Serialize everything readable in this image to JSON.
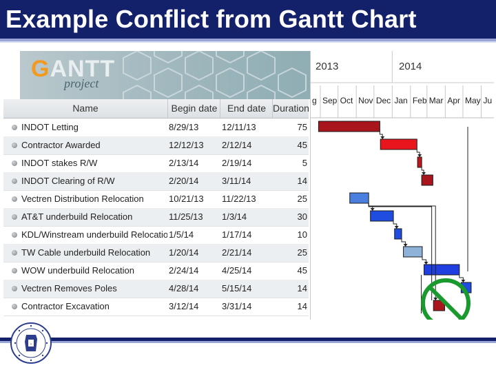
{
  "slide": {
    "title": "Example Conflict from Gantt Chart"
  },
  "logo": {
    "gantt_g": "G",
    "gantt_rest": "ANTT",
    "project": "project"
  },
  "columns": {
    "name": "Name",
    "begin": "Begin date",
    "end": "End date",
    "duration": "Duration"
  },
  "tasks": [
    {
      "name": "INDOT Letting",
      "begin": "8/29/13",
      "end": "12/11/13",
      "duration": "75"
    },
    {
      "name": "Contractor Awarded",
      "begin": "12/12/13",
      "end": "2/12/14",
      "duration": "45"
    },
    {
      "name": "INDOT stakes R/W",
      "begin": "2/13/14",
      "end": "2/19/14",
      "duration": "5"
    },
    {
      "name": "INDOT Clearing of R/W",
      "begin": "2/20/14",
      "end": "3/11/14",
      "duration": "14"
    },
    {
      "name": "Vectren Distribution Relocation",
      "begin": "10/21/13",
      "end": "11/22/13",
      "duration": "25"
    },
    {
      "name": "AT&T underbuild Relocation",
      "begin": "11/25/13",
      "end": "1/3/14",
      "duration": "30"
    },
    {
      "name": "KDL/Winstream underbuild Relocation",
      "begin": "1/5/14",
      "end": "1/17/14",
      "duration": "10"
    },
    {
      "name": "TW Cable underbuild Relocation",
      "begin": "1/20/14",
      "end": "2/21/14",
      "duration": "25"
    },
    {
      "name": "WOW underbuild Relocation",
      "begin": "2/24/14",
      "end": "4/25/14",
      "duration": "45"
    },
    {
      "name": "Vectren Removes Poles",
      "begin": "4/28/14",
      "end": "5/15/14",
      "duration": "14"
    },
    {
      "name": "Contractor Excavation",
      "begin": "3/12/14",
      "end": "3/31/14",
      "duration": "14"
    }
  ],
  "timeline": {
    "years": [
      "2013",
      "2014"
    ],
    "months": [
      "g",
      "Sep",
      "Oct",
      "Nov",
      "Dec",
      "Jan",
      "Feb",
      "Mar",
      "Apr",
      "May",
      "Ju"
    ]
  },
  "bars": [
    {
      "task": "INDOT Letting",
      "start": "2013-08-29",
      "end": "2013-12-11",
      "color": "#a8151d"
    },
    {
      "task": "Contractor Awarded",
      "start": "2013-12-12",
      "end": "2014-02-12",
      "color": "#e8161c"
    },
    {
      "task": "INDOT stakes R/W",
      "start": "2014-02-13",
      "end": "2014-02-19",
      "color": "#c0151b"
    },
    {
      "task": "INDOT Clearing of R/W",
      "start": "2014-02-20",
      "end": "2014-03-11",
      "color": "#a8151d"
    },
    {
      "task": "Vectren Distribution Relocation",
      "start": "2013-10-21",
      "end": "2013-11-22",
      "color": "#4a7fe0"
    },
    {
      "task": "AT&T underbuild Relocation",
      "start": "2013-11-25",
      "end": "2014-01-03",
      "color": "#1f4de0"
    },
    {
      "task": "KDL/Winstream underbuild Relocation",
      "start": "2014-01-05",
      "end": "2014-01-17",
      "color": "#1f4de0"
    },
    {
      "task": "TW Cable underbuild Relocation",
      "start": "2014-01-20",
      "end": "2014-02-21",
      "color": "#8fb3d8"
    },
    {
      "task": "WOW underbuild Relocation",
      "start": "2014-02-24",
      "end": "2014-04-25",
      "color": "#1f3fe0"
    },
    {
      "task": "Vectren Removes Poles",
      "start": "2014-04-28",
      "end": "2014-05-15",
      "color": "#1f4de0"
    },
    {
      "task": "Contractor Excavation",
      "start": "2014-03-12",
      "end": "2014-03-31",
      "color": "#a8151d"
    }
  ],
  "colors": {
    "title_bar": "#13206a",
    "conflict_symbol": "#1a9a2e"
  },
  "icons": {
    "conflict": "no-entry-icon",
    "seal": "indot-seal-icon"
  }
}
